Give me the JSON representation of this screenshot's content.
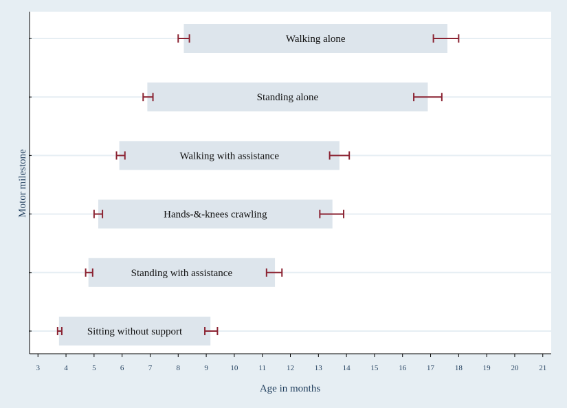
{
  "chart_data": {
    "type": "bar",
    "orientation": "horizontal",
    "chart_style": "floating range bars with error whiskers at both ends",
    "xlabel": "Age in months",
    "ylabel": "Motor milestone",
    "xlim": [
      2.7,
      21.3
    ],
    "xticks": [
      3,
      4,
      5,
      6,
      7,
      8,
      9,
      10,
      11,
      12,
      13,
      14,
      15,
      16,
      17,
      18,
      19,
      20,
      21
    ],
    "grid": "horizontal lines at each milestone",
    "categories": [
      "Walking alone",
      "Standing alone",
      "Walking with assistance",
      "Hands-&-knees crawling",
      "Standing with assistance",
      "Sitting without support"
    ],
    "bars": [
      {
        "label": "Walking alone",
        "start": 8.2,
        "end": 17.6,
        "start_ci": [
          8.0,
          8.4
        ],
        "end_ci": [
          17.1,
          18.0
        ]
      },
      {
        "label": "Standing alone",
        "start": 6.9,
        "end": 16.9,
        "start_ci": [
          6.75,
          7.1
        ],
        "end_ci": [
          16.4,
          17.4
        ]
      },
      {
        "label": "Walking with assistance",
        "start": 5.9,
        "end": 13.75,
        "start_ci": [
          5.8,
          6.1
        ],
        "end_ci": [
          13.4,
          14.1
        ]
      },
      {
        "label": "Hands-&-knees crawling",
        "start": 5.15,
        "end": 13.5,
        "start_ci": [
          5.0,
          5.3
        ],
        "end_ci": [
          13.05,
          13.9
        ]
      },
      {
        "label": "Standing with assistance",
        "start": 4.8,
        "end": 11.45,
        "start_ci": [
          4.7,
          4.95
        ],
        "end_ci": [
          11.15,
          11.7
        ]
      },
      {
        "label": "Sitting without support",
        "start": 3.75,
        "end": 9.15,
        "start_ci": [
          3.7,
          3.85
        ],
        "end_ci": [
          8.95,
          9.4
        ]
      }
    ],
    "colors": {
      "background": "#e6eef3",
      "plot_area": "#ffffff",
      "bar_fill": "#dde5ec",
      "gridline": "#e6eef3",
      "error_bar": "#8b2332",
      "axis": "#000000",
      "text": "#1f3d5c"
    }
  }
}
